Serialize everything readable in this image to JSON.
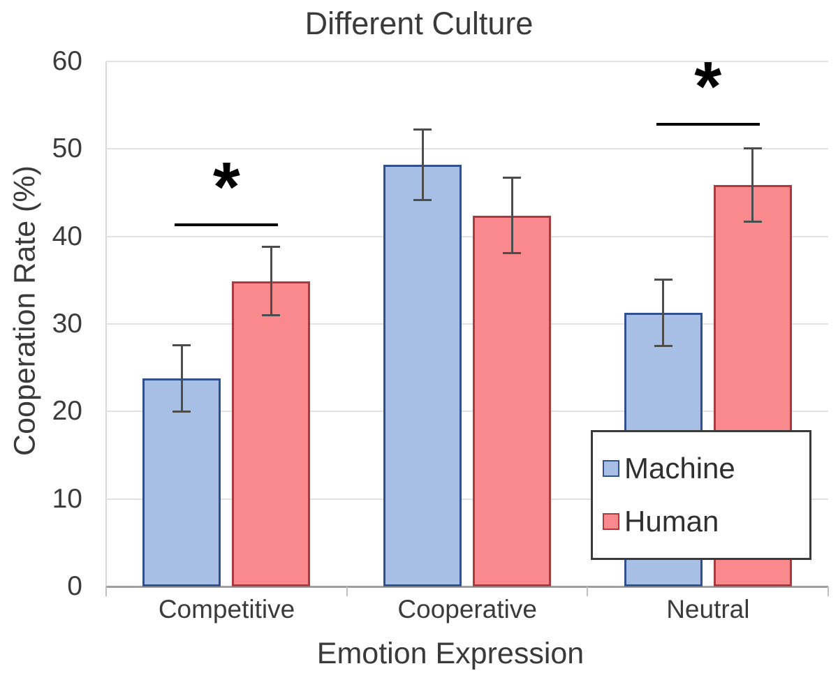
{
  "chart_data": {
    "type": "bar",
    "title": "Different Culture",
    "xlabel": "Emotion Expression",
    "ylabel": "Cooperation Rate (%)",
    "categories": [
      "Competitive",
      "Cooperative",
      "Neutral"
    ],
    "series": [
      {
        "name": "Machine",
        "values": [
          23.8,
          48.2,
          31.3
        ],
        "errors": [
          3.8,
          4.0,
          3.8
        ],
        "fill": "#a7bee5",
        "border": "#31508e"
      },
      {
        "name": "Human",
        "values": [
          34.9,
          42.4,
          45.9
        ],
        "errors": [
          3.9,
          4.3,
          4.2
        ],
        "fill": "#f9898d",
        "border": "#a93a40"
      }
    ],
    "ylim": [
      0,
      60
    ],
    "yticks": [
      0,
      10,
      20,
      30,
      40,
      50,
      60
    ],
    "grid": "horizontal-light-gray",
    "legend_position": "bottom-right-overlay",
    "error_bar_color": "#4d4d4d",
    "significance": [
      {
        "category": "Competitive",
        "category_index": 0,
        "label": "*",
        "line_y": 41.5
      },
      {
        "category": "Neutral",
        "category_index": 2,
        "label": "*",
        "line_y": 53.0
      }
    ]
  }
}
